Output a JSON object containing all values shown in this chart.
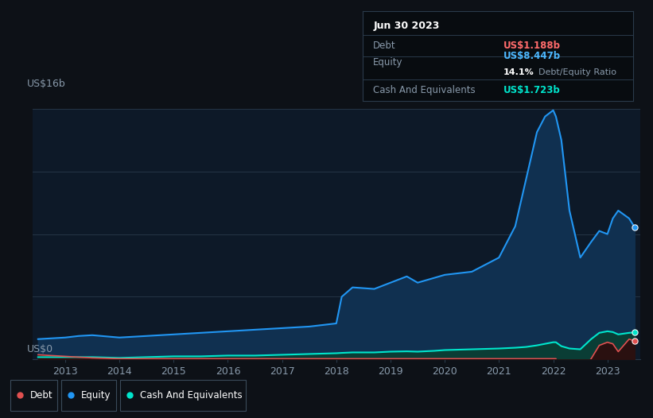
{
  "background_color": "#0d1117",
  "chart_bg_color": "#0d1928",
  "title_box": {
    "date": "Jun 30 2023",
    "debt_label": "Debt",
    "debt_value": "US$1.188b",
    "debt_color": "#ff6b6b",
    "equity_label": "Equity",
    "equity_value": "US$8.447b",
    "equity_color": "#4db8ff",
    "ratio_value": "14.1%",
    "ratio_label": "Debt/Equity Ratio",
    "cash_label": "Cash And Equivalents",
    "cash_value": "US$1.723b",
    "cash_color": "#00e5cc"
  },
  "ylabel_top": "US$16b",
  "ylabel_bottom": "US$0",
  "x_ticks": [
    "2013",
    "2014",
    "2015",
    "2016",
    "2017",
    "2018",
    "2019",
    "2020",
    "2021",
    "2022",
    "2023"
  ],
  "equity_color": "#2196f3",
  "equity_fill": "#103050",
  "debt_color": "#e05050",
  "cash_color": "#00e5cc",
  "cash_fill": "#0a3d35",
  "ylim": [
    0,
    16
  ],
  "legend_items": [
    {
      "label": "Debt",
      "color": "#e05050"
    },
    {
      "label": "Equity",
      "color": "#2196f3"
    },
    {
      "label": "Cash And Equivalents",
      "color": "#00e5cc"
    }
  ],
  "time_points": [
    2012.5,
    2013.0,
    2013.25,
    2013.5,
    2014.0,
    2014.5,
    2015.0,
    2015.5,
    2016.0,
    2016.5,
    2017.0,
    2017.5,
    2018.0,
    2018.1,
    2018.3,
    2018.7,
    2019.0,
    2019.3,
    2019.5,
    2019.8,
    2020.0,
    2020.5,
    2021.0,
    2021.3,
    2021.5,
    2021.7,
    2021.85,
    2022.0,
    2022.05,
    2022.15,
    2022.3,
    2022.5,
    2022.7,
    2022.85,
    2023.0,
    2023.1,
    2023.2,
    2023.4,
    2023.5
  ],
  "equity_values": [
    1.3,
    1.4,
    1.5,
    1.55,
    1.4,
    1.5,
    1.6,
    1.7,
    1.8,
    1.9,
    2.0,
    2.1,
    2.3,
    4.0,
    4.6,
    4.5,
    4.9,
    5.3,
    4.9,
    5.2,
    5.4,
    5.6,
    6.5,
    8.5,
    11.5,
    14.5,
    15.5,
    15.9,
    15.5,
    14.0,
    9.5,
    6.5,
    7.5,
    8.2,
    8.0,
    9.0,
    9.5,
    9.0,
    8.447
  ],
  "debt_values": [
    0.3,
    0.2,
    0.15,
    0.1,
    0.05,
    0.05,
    0.05,
    0.05,
    0.05,
    0.05,
    0.05,
    0.05,
    0.05,
    0.05,
    0.05,
    0.05,
    0.05,
    0.05,
    0.05,
    0.05,
    0.05,
    0.05,
    0.05,
    0.05,
    0.05,
    0.05,
    0.05,
    0.05,
    0.05,
    -0.8,
    -0.8,
    -0.8,
    0.05,
    0.9,
    1.1,
    1.0,
    0.5,
    1.3,
    1.188
  ],
  "cash_values": [
    0.15,
    0.15,
    0.15,
    0.15,
    0.1,
    0.15,
    0.2,
    0.2,
    0.25,
    0.25,
    0.3,
    0.35,
    0.4,
    0.42,
    0.45,
    0.45,
    0.5,
    0.52,
    0.5,
    0.55,
    0.6,
    0.65,
    0.7,
    0.75,
    0.8,
    0.9,
    1.0,
    1.1,
    1.1,
    0.85,
    0.7,
    0.65,
    1.3,
    1.7,
    1.8,
    1.75,
    1.6,
    1.7,
    1.723
  ]
}
